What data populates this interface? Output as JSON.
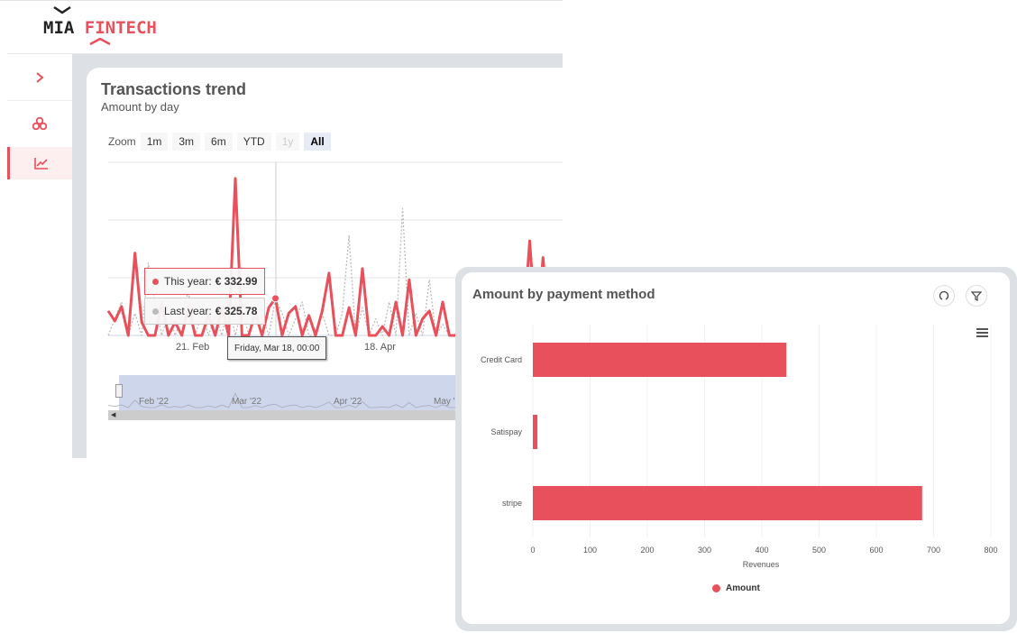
{
  "brand": {
    "part1": "MIA",
    "part2": "FINTECH",
    "accent": "#e8505b"
  },
  "sidebar": {
    "items": [
      {
        "icon": "chevron-right-icon"
      },
      {
        "icon": "cubes-icon"
      },
      {
        "icon": "chart-line-icon",
        "active": true
      }
    ]
  },
  "trend": {
    "title": "Transactions trend",
    "subtitle": "Amount by day",
    "zoom_label": "Zoom",
    "zoom_buttons": [
      {
        "label": "1m"
      },
      {
        "label": "3m"
      },
      {
        "label": "6m"
      },
      {
        "label": "YTD"
      },
      {
        "label": "1y",
        "disabled": true
      },
      {
        "label": "All",
        "selected": true
      }
    ],
    "tooltip": {
      "this_year_label": "This year:",
      "this_year_value": "€ 332.99",
      "last_year_label": "Last year:",
      "last_year_value": "€ 325.78",
      "date": "Friday, Mar 18, 00:00"
    },
    "x_labels": [
      "21. Feb",
      "18. Apr"
    ],
    "navigator_labels": [
      "Feb '22",
      "Mar '22",
      "Apr '22",
      "May '22"
    ]
  },
  "chart_data": [
    {
      "type": "line",
      "title": "Transactions trend",
      "subtitle": "Amount by day",
      "xlabel": "",
      "ylabel": "",
      "grid": true,
      "x": [
        "2022-01-27",
        "2022-01-29",
        "2022-01-31",
        "2022-02-02",
        "2022-02-04",
        "2022-02-06",
        "2022-02-08",
        "2022-02-10",
        "2022-02-12",
        "2022-02-14",
        "2022-02-16",
        "2022-02-18",
        "2022-02-20",
        "2022-02-22",
        "2022-02-24",
        "2022-02-26",
        "2022-02-28",
        "2022-03-02",
        "2022-03-04",
        "2022-03-06",
        "2022-03-08",
        "2022-03-10",
        "2022-03-12",
        "2022-03-14",
        "2022-03-16",
        "2022-03-18",
        "2022-03-20",
        "2022-03-22",
        "2022-03-24",
        "2022-03-26",
        "2022-03-28",
        "2022-03-30",
        "2022-04-01",
        "2022-04-03",
        "2022-04-05",
        "2022-04-07",
        "2022-04-09",
        "2022-04-11",
        "2022-04-13",
        "2022-04-15",
        "2022-04-17",
        "2022-04-19",
        "2022-04-21",
        "2022-04-23",
        "2022-04-25",
        "2022-04-27",
        "2022-04-29",
        "2022-05-01",
        "2022-05-03",
        "2022-05-05",
        "2022-05-07",
        "2022-05-09",
        "2022-05-11",
        "2022-05-13",
        "2022-05-15",
        "2022-05-17",
        "2022-05-19",
        "2022-05-21",
        "2022-05-23",
        "2022-05-25",
        "2022-05-27",
        "2022-05-29",
        "2022-05-31",
        "2022-06-02",
        "2022-06-04",
        "2022-06-06",
        "2022-06-08",
        "2022-06-10"
      ],
      "series": [
        {
          "name": "This year",
          "color": "#e8505b",
          "values": [
            220,
            130,
            260,
            0,
            740,
            120,
            0,
            0,
            300,
            0,
            120,
            0,
            260,
            0,
            0,
            180,
            0,
            250,
            0,
            1410,
            0,
            0,
            200,
            0,
            250,
            332.99,
            0,
            200,
            260,
            0,
            180,
            0,
            220,
            560,
            0,
            0,
            250,
            0,
            600,
            0,
            0,
            80,
            0,
            300,
            0,
            500,
            0,
            150,
            220,
            0,
            300,
            0,
            0,
            260,
            280,
            0,
            380,
            0,
            300,
            120,
            0,
            420,
            0,
            850,
            0,
            700,
            0,
            380
          ]
        },
        {
          "name": "Last year",
          "color": "#bbbbbb",
          "style": "dotted",
          "values": [
            0,
            150,
            300,
            0,
            200,
            0,
            650,
            300,
            0,
            200,
            0,
            150,
            400,
            0,
            200,
            0,
            180,
            0,
            300,
            0,
            250,
            0,
            326,
            180,
            0,
            325.78,
            200,
            0,
            150,
            300,
            0,
            0,
            200,
            0,
            0,
            200,
            900,
            0,
            250,
            0,
            150,
            0,
            300,
            0,
            1140,
            0,
            200,
            0,
            500,
            0,
            100,
            0,
            0,
            200,
            0,
            0,
            120,
            0,
            0,
            0,
            0,
            0,
            0,
            0,
            0,
            0,
            0,
            0
          ]
        }
      ]
    },
    {
      "type": "bar",
      "orientation": "horizontal",
      "title": "Amount by payment method",
      "xlabel": "Revenues",
      "ylabel": "",
      "categories": [
        "Credit Card",
        "Satispay",
        "stripe"
      ],
      "series": [
        {
          "name": "Amount",
          "color": "#e8505b",
          "values": [
            443,
            8,
            680
          ]
        }
      ],
      "xlim": [
        0,
        800
      ],
      "x_ticks": [
        "0",
        "100",
        "200",
        "300",
        "400",
        "500",
        "600",
        "700",
        "800"
      ],
      "grid": true,
      "legend": "bottom"
    }
  ]
}
